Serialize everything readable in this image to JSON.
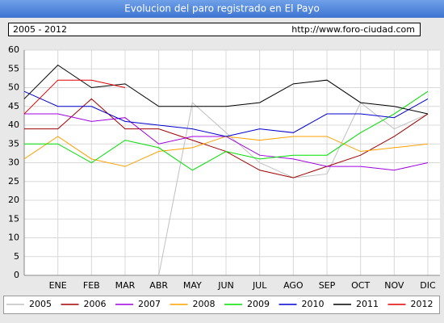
{
  "chart_data": {
    "type": "line",
    "title": "Evolucion del paro registrado en El Payo",
    "subtitle": "2005 - 2012",
    "source": "http://www.foro-ciudad.com",
    "categories": [
      null,
      "ENE",
      "FEB",
      "MAR",
      "ABR",
      "MAY",
      "JUN",
      "JUL",
      "AGO",
      "SEP",
      "OCT",
      "NOV",
      "DIC"
    ],
    "ylim": [
      0,
      60
    ],
    "yticks": [
      0,
      5,
      10,
      15,
      20,
      25,
      30,
      35,
      40,
      45,
      50,
      55,
      60
    ],
    "grid": true,
    "legend": "bottom",
    "series": [
      {
        "name": "2005",
        "color": "#c0c0c0",
        "values": [
          null,
          null,
          null,
          null,
          0,
          46,
          38,
          30,
          26,
          27,
          46,
          39,
          43
        ]
      },
      {
        "name": "2006",
        "color": "#a00000",
        "values": [
          39,
          39,
          47,
          39,
          39,
          36,
          33,
          28,
          26,
          29,
          32,
          37,
          43
        ]
      },
      {
        "name": "2007",
        "color": "#a000e0",
        "values": [
          43,
          43,
          41,
          42,
          35,
          37,
          37,
          32,
          31,
          29,
          29,
          28,
          30
        ]
      },
      {
        "name": "2008",
        "color": "#ffa000",
        "values": [
          31,
          37,
          31,
          29,
          33,
          34,
          37,
          36,
          37,
          37,
          33,
          34,
          35
        ]
      },
      {
        "name": "2009",
        "color": "#00e000",
        "values": [
          35,
          35,
          30,
          36,
          34,
          28,
          33,
          31,
          32,
          32,
          38,
          43,
          49
        ]
      },
      {
        "name": "2010",
        "color": "#0000d0",
        "values": [
          49,
          45,
          45,
          41,
          40,
          39,
          37,
          39,
          38,
          43,
          43,
          42,
          47
        ]
      },
      {
        "name": "2011",
        "color": "#000000",
        "values": [
          47,
          56,
          50,
          51,
          45,
          45,
          45,
          46,
          51,
          52,
          46,
          45,
          43
        ]
      },
      {
        "name": "2012",
        "color": "#e00000",
        "values": [
          43,
          52,
          52,
          50,
          null,
          null,
          null,
          null,
          null,
          null,
          null,
          null,
          null
        ]
      }
    ]
  }
}
